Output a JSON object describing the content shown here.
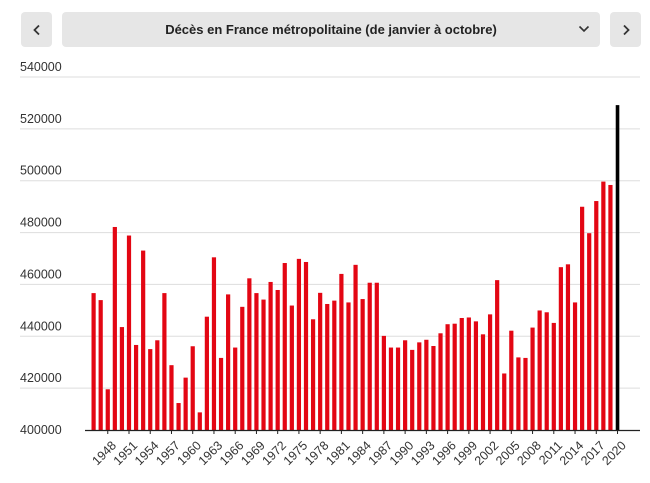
{
  "nav": {
    "prev_icon": "chevron-left-icon",
    "next_icon": "chevron-right-icon"
  },
  "selector": {
    "label": "Décès en France métropolitaine (de janvier à octobre)",
    "icon": "chevron-down-icon"
  },
  "colors": {
    "bar": "#e30613",
    "highlight_bar": "#000000",
    "grid": "#dddddd",
    "axis": "#222222",
    "text": "#333333"
  },
  "chart_data": {
    "type": "bar",
    "title": "",
    "xlabel": "",
    "ylabel": "",
    "ylim": [
      400000,
      540000
    ],
    "yticks": [
      400000,
      420000,
      440000,
      460000,
      480000,
      500000,
      520000,
      540000
    ],
    "categories": [
      "1946",
      "1947",
      "1948",
      "1949",
      "1950",
      "1951",
      "1952",
      "1953",
      "1954",
      "1955",
      "1956",
      "1957",
      "1958",
      "1959",
      "1960",
      "1961",
      "1962",
      "1963",
      "1964",
      "1965",
      "1966",
      "1967",
      "1968",
      "1969",
      "1970",
      "1971",
      "1972",
      "1973",
      "1974",
      "1975",
      "1976",
      "1977",
      "1978",
      "1979",
      "1980",
      "1981",
      "1982",
      "1983",
      "1984",
      "1985",
      "1986",
      "1987",
      "1988",
      "1989",
      "1990",
      "1991",
      "1992",
      "1993",
      "1994",
      "1995",
      "1996",
      "1997",
      "1998",
      "1999",
      "2000",
      "2001",
      "2002",
      "2003",
      "2004",
      "2005",
      "2006",
      "2007",
      "2008",
      "2009",
      "2010",
      "2011",
      "2012",
      "2013",
      "2014",
      "2015",
      "2016",
      "2017",
      "2018",
      "2019",
      "2020"
    ],
    "x_tick_labels": [
      "1948",
      "1951",
      "1954",
      "1957",
      "1960",
      "1963",
      "1966",
      "1969",
      "1972",
      "1975",
      "1978",
      "1981",
      "1984",
      "1987",
      "1990",
      "1993",
      "1996",
      "1999",
      "2002",
      "2005",
      "2008",
      "2011",
      "2014",
      "2017",
      "2020"
    ],
    "values": [
      452800,
      450100,
      415700,
      478300,
      439700,
      475000,
      432800,
      469200,
      431200,
      434600,
      452800,
      425000,
      410400,
      420200,
      432300,
      406800,
      443700,
      466600,
      427800,
      452300,
      431800,
      447500,
      458500,
      452800,
      450300,
      457100,
      454000,
      464400,
      448000,
      466000,
      464800,
      442700,
      452900,
      448600,
      449900,
      460200,
      449200,
      463700,
      450500,
      456800,
      456800,
      436300,
      431800,
      431800,
      434600,
      430900,
      433800,
      434800,
      432400,
      437300,
      440800,
      441000,
      443200,
      443400,
      441900,
      436900,
      444600,
      457800,
      421800,
      438300,
      428000,
      427800,
      439500,
      446100,
      445400,
      441300,
      462800,
      463900,
      449200,
      486100,
      475900,
      488300,
      495800,
      494500,
      525300
    ],
    "highlight_category": "2020"
  }
}
